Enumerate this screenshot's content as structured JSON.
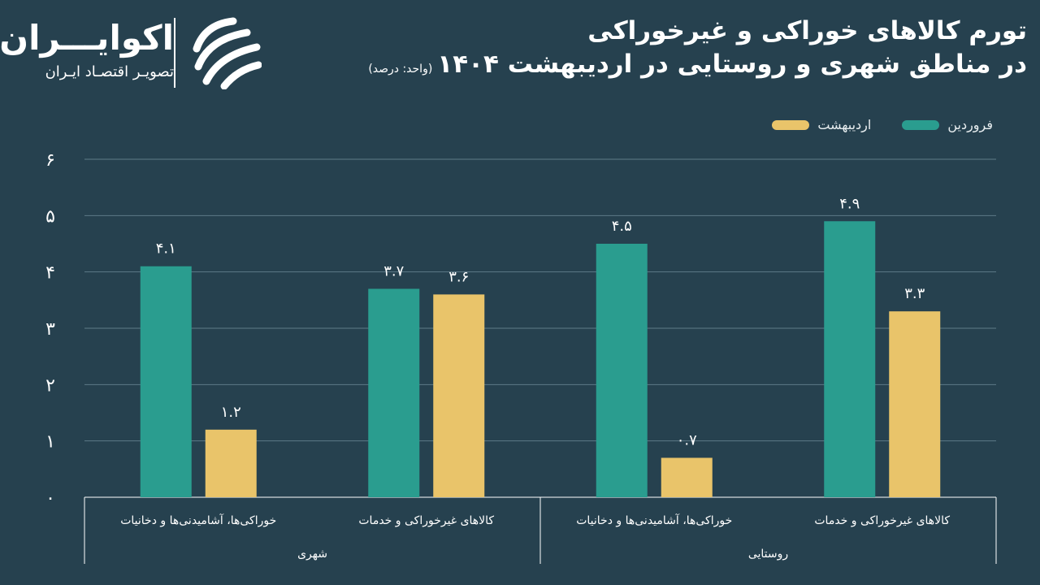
{
  "header": {
    "title_line1": "تورم کالاهای خوراکی و غیرخوراکی",
    "title_line2": "در مناطق شهری و روستایی در اردیبهشت ۱۴۰۴",
    "unit": "(واحد: درصد)"
  },
  "logo": {
    "name": "اکوایـــران",
    "subtitle": "تصویـر اقتصـاد ایـران",
    "mark_icon": "ecoiran-swirl-logo"
  },
  "colors": {
    "background": "#26414f",
    "farvardin": "#2a9d8f",
    "ordibehesht": "#e9c46a",
    "grid": "#5d7a87",
    "text": "#ffffff"
  },
  "chart_data": {
    "type": "bar",
    "ylim": [
      0,
      6
    ],
    "yticks": [
      0,
      1,
      2,
      3,
      4,
      5,
      6
    ],
    "ytick_labels": [
      "۰",
      "۱",
      "۲",
      "۳",
      "۴",
      "۵",
      "۶"
    ],
    "categories": [
      "خوراکی‌ها، آشامیدنی‌ها و دخانیات",
      "کالاهای  غیرخوراکی و خدمات",
      "خوراکی‌ها، آشامیدنی‌ها و دخانیات",
      "کالاهای  غیرخوراکی و خدمات"
    ],
    "groups": [
      {
        "label": "شهری",
        "span": [
          0,
          1
        ]
      },
      {
        "label": "روستایی",
        "span": [
          2,
          3
        ]
      }
    ],
    "series": [
      {
        "name": "فروردین",
        "values": [
          4.1,
          3.7,
          4.5,
          4.9
        ],
        "labels": [
          "۴.۱",
          "۳.۷",
          "۴.۵",
          "۴.۹"
        ]
      },
      {
        "name": "اردیبهشت",
        "values": [
          1.2,
          3.6,
          0.7,
          3.3
        ],
        "labels": [
          "۱.۲",
          "۳.۶",
          "۰.۷",
          "۳.۳"
        ]
      }
    ],
    "legend_position": "top-right",
    "grid": true
  }
}
